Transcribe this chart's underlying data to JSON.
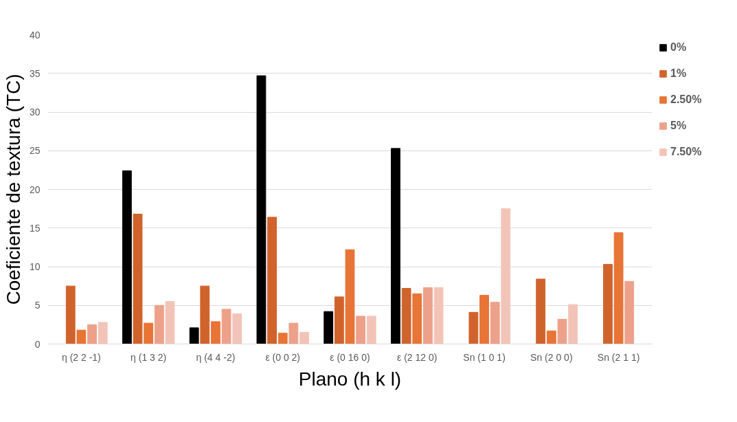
{
  "chart_data": {
    "type": "bar",
    "xlabel": "Plano (h k l)",
    "ylabel": "Coeficiente de textura (TC)",
    "categories": [
      "η (2 2 -1)",
      "η (1 3 2)",
      "η (4 4 -2)",
      "ε (0 0 2)",
      "ε (0 16 0)",
      "ε (2 12 0)",
      "Sn (1 0 1)",
      "Sn (2 0 0)",
      "Sn (2 1 1)"
    ],
    "series": [
      {
        "name": "0%",
        "color": "#000000",
        "values": [
          null,
          22.4,
          2.1,
          34.7,
          4.2,
          25.3,
          null,
          null,
          null
        ]
      },
      {
        "name": "1%",
        "color": "#d0632c",
        "values": [
          7.5,
          16.8,
          7.5,
          16.4,
          6.1,
          7.2,
          4.1,
          8.4,
          10.3
        ]
      },
      {
        "name": "2.50%",
        "color": "#e87436",
        "values": [
          1.8,
          2.7,
          2.9,
          1.4,
          12.2,
          6.5,
          6.3,
          1.7,
          14.4
        ]
      },
      {
        "name": "5%",
        "color": "#eda18a",
        "values": [
          2.5,
          5.0,
          4.5,
          2.7,
          3.6,
          7.3,
          5.4,
          3.2,
          8.1
        ]
      },
      {
        "name": "7.50%",
        "color": "#f2c4b7",
        "values": [
          2.8,
          5.5,
          3.9,
          1.5,
          3.6,
          7.3,
          17.5,
          5.1,
          null
        ]
      }
    ],
    "ylim": [
      0,
      40
    ],
    "yticks": [
      0,
      5,
      10,
      15,
      20,
      25,
      30,
      35,
      40
    ],
    "grid": "y",
    "legend": "right"
  }
}
